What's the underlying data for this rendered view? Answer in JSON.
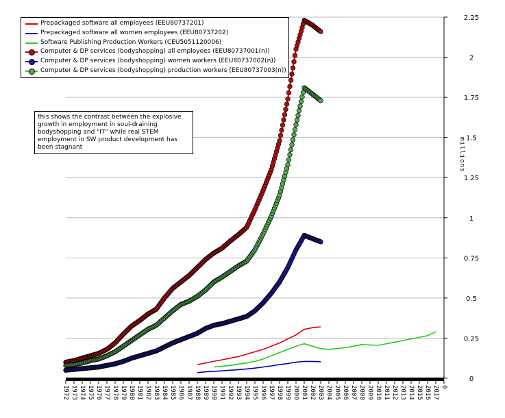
{
  "chart_data": {
    "type": "line",
    "title": "",
    "ylabel": "millions",
    "ylim": [
      0,
      2.25
    ],
    "xlim": [
      1972,
      2018
    ],
    "y_ticks": [
      "0",
      "0.25",
      "0.5",
      "0.75",
      "1",
      "1.25",
      "1.5",
      "1.75",
      "2",
      "2.25"
    ],
    "x_ticks": [
      "1972",
      "1973",
      "1974",
      "1975",
      "1976",
      "1977",
      "1978",
      "1979",
      "1980",
      "1981",
      "1982",
      "1983",
      "1984",
      "1985",
      "1986",
      "1987",
      "1988",
      "1989",
      "1990",
      "1991",
      "1992",
      "1993",
      "1994",
      "1995",
      "1996",
      "1997",
      "1998",
      "1999",
      "2000",
      "2001",
      "2002",
      "2003",
      "2004",
      "2005",
      "2006",
      "2007",
      "2008",
      "2009",
      "2010",
      "2011",
      "2012",
      "2013",
      "2014",
      "2015",
      "2016",
      "2017",
      "0"
    ],
    "x_tick_labels_shown": [
      "1972",
      "1974",
      "1976",
      "1978",
      "1980",
      "1982",
      "1984",
      "1986",
      "1988",
      "1990",
      "1992",
      "1994",
      "1996",
      "1998",
      "2000",
      "2002",
      "2004",
      "2006",
      "2008",
      "2010",
      "2012",
      "2014",
      "2016",
      "1973",
      "1975",
      "1977",
      "1979",
      "1981",
      "1983",
      "1985",
      "1987",
      "1989",
      "1991",
      "1993",
      "1995",
      "1997",
      "1999",
      "2001",
      "2003",
      "2005",
      "2007",
      "2009",
      "2011",
      "2013",
      "2015",
      "2017",
      "0"
    ],
    "grid": "horizontal",
    "legend_position": "top-left",
    "series": [
      {
        "name": "Prepackaged software all employees (EEU80737201)",
        "color": "#e00000",
        "marker": false,
        "x": [
          1988,
          1989,
          1990,
          1991,
          1992,
          1993,
          1994,
          1995,
          1996,
          1997,
          1998,
          1999,
          2000,
          2001,
          2002,
          2003
        ],
        "y": [
          0.085,
          0.095,
          0.105,
          0.115,
          0.125,
          0.135,
          0.15,
          0.165,
          0.18,
          0.2,
          0.22,
          0.245,
          0.27,
          0.305,
          0.315,
          0.32
        ]
      },
      {
        "name": "Prepackaged software all women employees (EEU80737202)",
        "color": "#0000c8",
        "marker": false,
        "x": [
          1988,
          1989,
          1990,
          1991,
          1992,
          1993,
          1994,
          1995,
          1996,
          1997,
          1998,
          1999,
          2000,
          2001,
          2002,
          2003
        ],
        "y": [
          0.035,
          0.04,
          0.043,
          0.046,
          0.05,
          0.054,
          0.058,
          0.063,
          0.07,
          0.077,
          0.085,
          0.092,
          0.1,
          0.105,
          0.105,
          0.103
        ]
      },
      {
        "name": "Software Publishing Production Workers (CEU5051120006)",
        "color": "#22cc22",
        "marker": false,
        "x": [
          1990,
          1991,
          1992,
          1993,
          1994,
          1995,
          1996,
          1997,
          1998,
          1999,
          2000,
          2001,
          2002,
          2003,
          2004,
          2006,
          2008,
          2010,
          2012,
          2014,
          2016,
          2017
        ],
        "y": [
          0.07,
          0.075,
          0.08,
          0.088,
          0.095,
          0.105,
          0.12,
          0.14,
          0.16,
          0.18,
          0.2,
          0.215,
          0.2,
          0.185,
          0.18,
          0.19,
          0.21,
          0.205,
          0.225,
          0.245,
          0.265,
          0.29
        ]
      },
      {
        "name": "Computer & DP services (bodyshopping) all employees (EEU80737001(n))",
        "color": "#b01010",
        "marker": true,
        "x": [
          1972,
          1973,
          1974,
          1975,
          1976,
          1977,
          1978,
          1979,
          1980,
          1981,
          1982,
          1983,
          1984,
          1985,
          1986,
          1987,
          1988,
          1989,
          1990,
          1991,
          1992,
          1993,
          1994,
          1995,
          1996,
          1997,
          1998,
          1999,
          2000,
          2001,
          2002,
          2003
        ],
        "y": [
          0.1,
          0.11,
          0.125,
          0.14,
          0.155,
          0.18,
          0.22,
          0.275,
          0.325,
          0.36,
          0.4,
          0.43,
          0.5,
          0.56,
          0.6,
          0.64,
          0.69,
          0.74,
          0.78,
          0.81,
          0.855,
          0.895,
          0.94,
          1.05,
          1.17,
          1.3,
          1.48,
          1.74,
          2.05,
          2.23,
          2.2,
          2.16
        ]
      },
      {
        "name": "Computer & DP services (bodyshopping) women workers (EEU80737002(n))",
        "color": "#1a1a90",
        "marker": true,
        "x": [
          1972,
          1973,
          1974,
          1975,
          1976,
          1977,
          1978,
          1979,
          1980,
          1981,
          1982,
          1983,
          1984,
          1985,
          1986,
          1987,
          1988,
          1989,
          1990,
          1991,
          1992,
          1993,
          1994,
          1995,
          1996,
          1997,
          1998,
          1999,
          2000,
          2001,
          2002,
          2003
        ],
        "y": [
          0.05,
          0.055,
          0.06,
          0.065,
          0.07,
          0.08,
          0.09,
          0.105,
          0.125,
          0.14,
          0.155,
          0.17,
          0.195,
          0.22,
          0.24,
          0.26,
          0.28,
          0.31,
          0.33,
          0.34,
          0.355,
          0.37,
          0.385,
          0.42,
          0.47,
          0.53,
          0.6,
          0.69,
          0.8,
          0.89,
          0.87,
          0.85
        ]
      },
      {
        "name": "Computer & DP services (bodyshopping) production workers (EEU80737003(n))",
        "color": "#55aa55",
        "marker": true,
        "x": [
          1972,
          1973,
          1974,
          1975,
          1976,
          1977,
          1978,
          1979,
          1980,
          1981,
          1982,
          1983,
          1984,
          1985,
          1986,
          1987,
          1988,
          1989,
          1990,
          1991,
          1992,
          1993,
          1994,
          1995,
          1996,
          1997,
          1998,
          1999,
          2000,
          2001,
          2002,
          2003
        ],
        "y": [
          0.08,
          0.085,
          0.095,
          0.11,
          0.12,
          0.14,
          0.165,
          0.2,
          0.235,
          0.27,
          0.305,
          0.33,
          0.375,
          0.42,
          0.46,
          0.48,
          0.51,
          0.55,
          0.6,
          0.63,
          0.665,
          0.7,
          0.73,
          0.8,
          0.9,
          1.01,
          1.14,
          1.33,
          1.58,
          1.81,
          1.77,
          1.73
        ]
      }
    ]
  },
  "annotation": {
    "text": "this shows the contrast between the explosive growth in employment in soul-draining bodyshopping and \"IT\" while real STEM  employment in SW product development has been stagnant"
  }
}
